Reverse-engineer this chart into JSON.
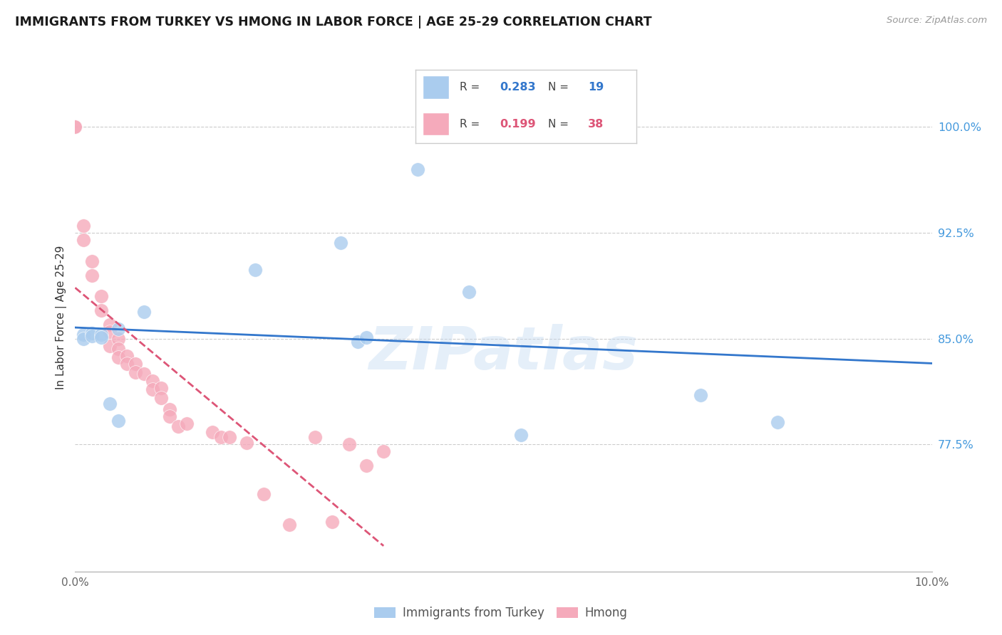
{
  "title": "IMMIGRANTS FROM TURKEY VS HMONG IN LABOR FORCE | AGE 25-29 CORRELATION CHART",
  "source": "Source: ZipAtlas.com",
  "ylabel": "In Labor Force | Age 25-29",
  "xlim": [
    0.0,
    0.1
  ],
  "ylim": [
    0.685,
    1.045
  ],
  "xtick_vals": [
    0.0,
    0.01,
    0.02,
    0.03,
    0.04,
    0.05,
    0.06,
    0.07,
    0.08,
    0.09,
    0.1
  ],
  "xticklabels": [
    "0.0%",
    "",
    "",
    "",
    "",
    "",
    "",
    "",
    "",
    "",
    "10.0%"
  ],
  "ytick_vals": [
    0.775,
    0.85,
    0.925,
    1.0
  ],
  "yticklabels": [
    "77.5%",
    "85.0%",
    "92.5%",
    "100.0%"
  ],
  "turkey_R": "0.283",
  "turkey_N": "19",
  "hmong_R": "0.199",
  "hmong_N": "38",
  "turkey_face_color": "#aaccee",
  "hmong_face_color": "#f5aabb",
  "turkey_line_color": "#3377cc",
  "hmong_line_color": "#dd5577",
  "axis_label_color": "#4499dd",
  "watermark": "ZIPatlas",
  "turkey_x": [
    0.001,
    0.001,
    0.002,
    0.002,
    0.003,
    0.003,
    0.004,
    0.005,
    0.005,
    0.008,
    0.021,
    0.031,
    0.033,
    0.034,
    0.04,
    0.046,
    0.052,
    0.073,
    0.082
  ],
  "turkey_y": [
    0.853,
    0.85,
    0.854,
    0.852,
    0.853,
    0.851,
    0.804,
    0.857,
    0.792,
    0.869,
    0.899,
    0.918,
    0.848,
    0.851,
    0.97,
    0.883,
    0.782,
    0.81,
    0.791
  ],
  "hmong_x": [
    0.0,
    0.0,
    0.001,
    0.001,
    0.002,
    0.002,
    0.003,
    0.003,
    0.004,
    0.004,
    0.004,
    0.005,
    0.005,
    0.005,
    0.006,
    0.006,
    0.007,
    0.007,
    0.008,
    0.009,
    0.009,
    0.01,
    0.01,
    0.011,
    0.011,
    0.012,
    0.013,
    0.016,
    0.017,
    0.018,
    0.02,
    0.022,
    0.025,
    0.028,
    0.03,
    0.032,
    0.034,
    0.036
  ],
  "hmong_y": [
    1.0,
    1.0,
    0.93,
    0.92,
    0.905,
    0.895,
    0.88,
    0.87,
    0.86,
    0.855,
    0.845,
    0.85,
    0.843,
    0.837,
    0.838,
    0.832,
    0.832,
    0.826,
    0.825,
    0.82,
    0.814,
    0.815,
    0.808,
    0.8,
    0.795,
    0.788,
    0.79,
    0.784,
    0.78,
    0.78,
    0.776,
    0.74,
    0.718,
    0.78,
    0.72,
    0.775,
    0.76,
    0.77
  ],
  "grid_color": "#cccccc",
  "spine_color": "#aaaaaa"
}
